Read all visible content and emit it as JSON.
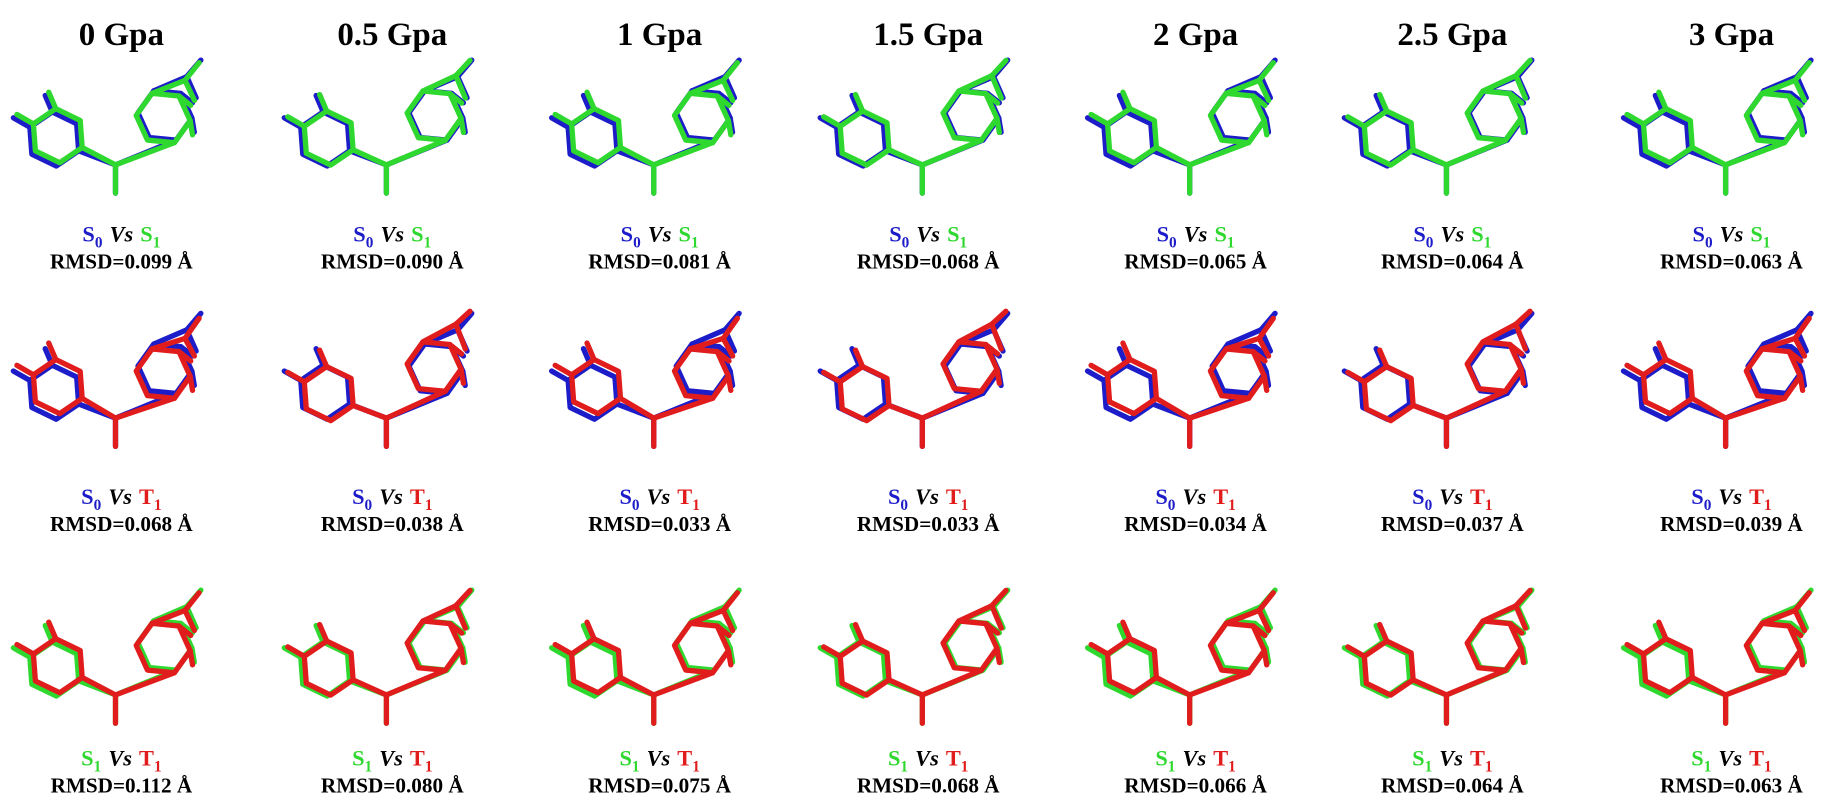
{
  "columns": [
    "0 Gpa",
    "0.5 Gpa",
    "1 Gpa",
    "1.5 Gpa",
    "2 Gpa",
    "2.5 Gpa",
    "3 Gpa"
  ],
  "rows": [
    {
      "a": {
        "symbol": "S",
        "sub": "0",
        "color": "#1c1cc8"
      },
      "vs": "Vs",
      "b": {
        "symbol": "S",
        "sub": "1",
        "color": "#2fd82f"
      },
      "rmsd": [
        "RMSD=0.099 Å",
        "RMSD=0.090 Å",
        "RMSD=0.081 Å",
        "RMSD=0.068 Å",
        "RMSD=0.065 Å",
        "RMSD=0.064 Å",
        "RMSD=0.063 Å"
      ]
    },
    {
      "a": {
        "symbol": "S",
        "sub": "0",
        "color": "#1c1cc8"
      },
      "vs": "Vs",
      "b": {
        "symbol": "T",
        "sub": "1",
        "color": "#e01c1c"
      },
      "rmsd": [
        "RMSD=0.068 Å",
        "RMSD=0.038 Å",
        "RMSD=0.033 Å",
        "RMSD=0.033 Å",
        "RMSD=0.034 Å",
        "RMSD=0.037 Å",
        "RMSD=0.039 Å"
      ]
    },
    {
      "a": {
        "symbol": "S",
        "sub": "1",
        "color": "#2fd82f"
      },
      "vs": "Vs",
      "b": {
        "symbol": "T",
        "sub": "1",
        "color": "#e01c1c"
      },
      "rmsd": [
        "RMSD=0.112 Å",
        "RMSD=0.080 Å",
        "RMSD=0.075 Å",
        "RMSD=0.068 Å",
        "RMSD=0.066 Å",
        "RMSD=0.064 Å",
        "RMSD=0.063 Å"
      ]
    }
  ]
}
